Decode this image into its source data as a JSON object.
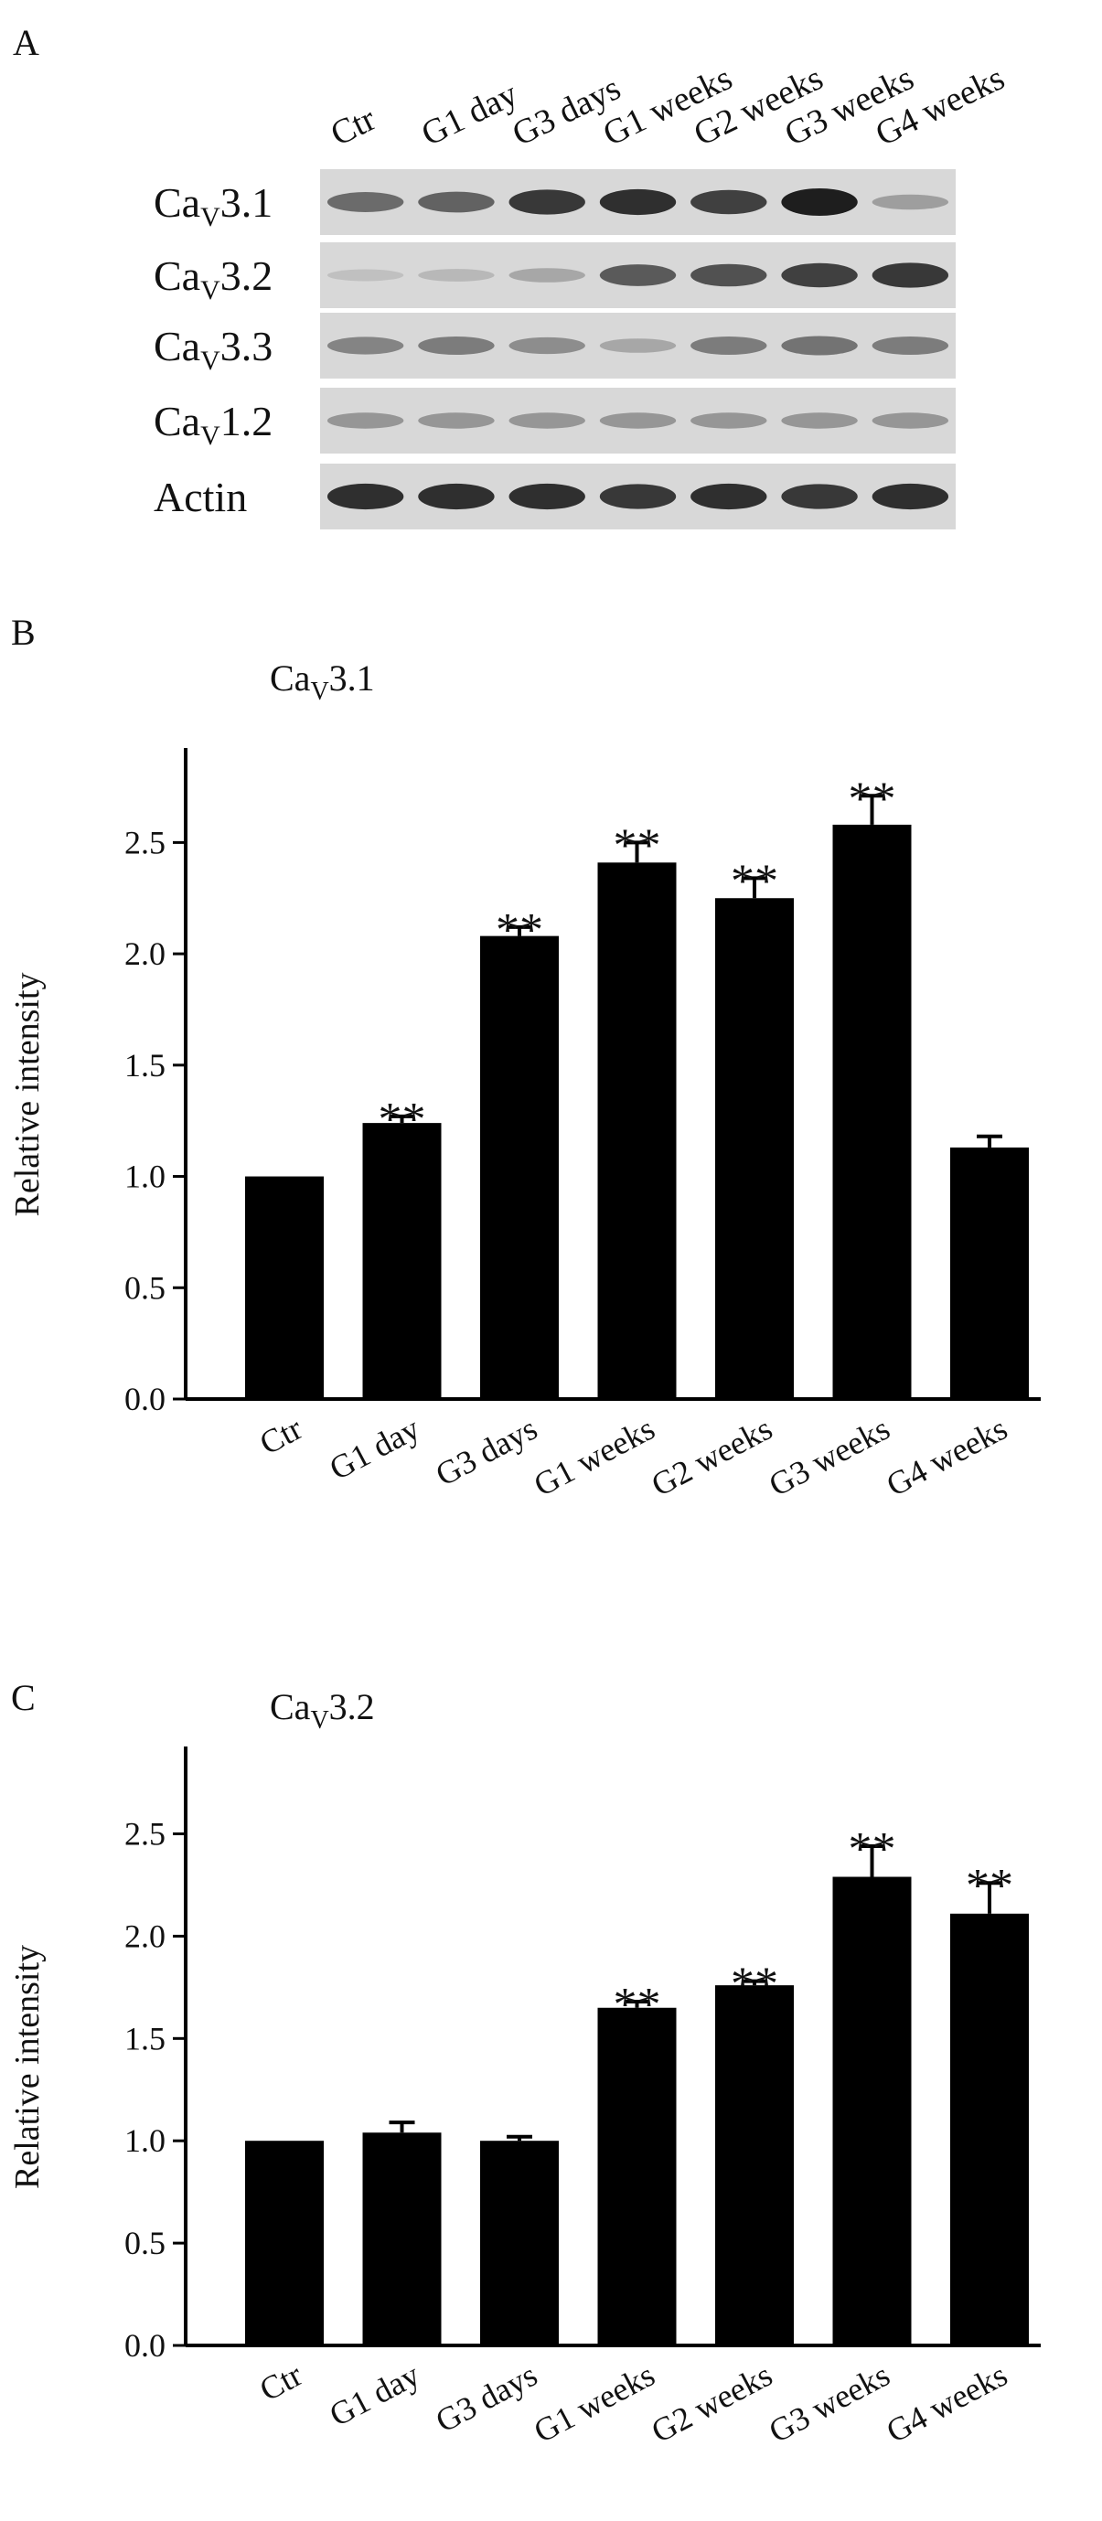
{
  "panel_a": {
    "letter": "A",
    "lanes": [
      "Ctr",
      "G1 day",
      "G3 days",
      "G1 weeks",
      "G2 weeks",
      "G3 weeks",
      "G4 weeks"
    ],
    "rows": [
      {
        "prefix": "Ca",
        "sub": "V",
        "suffix": "3.1",
        "intensity": [
          0.55,
          0.6,
          0.85,
          0.9,
          0.8,
          1.0,
          0.25
        ]
      },
      {
        "prefix": "Ca",
        "sub": "V",
        "suffix": "3.2",
        "intensity": [
          0.05,
          0.1,
          0.2,
          0.65,
          0.7,
          0.8,
          0.85
        ]
      },
      {
        "prefix": "Ca",
        "sub": "V",
        "suffix": "3.3",
        "intensity": [
          0.4,
          0.45,
          0.35,
          0.2,
          0.45,
          0.5,
          0.45
        ]
      },
      {
        "prefix": "Ca",
        "sub": "V",
        "suffix": "1.2",
        "intensity": [
          0.3,
          0.3,
          0.3,
          0.3,
          0.3,
          0.3,
          0.3
        ]
      },
      {
        "prefix": "Actin",
        "sub": "",
        "suffix": "",
        "intensity": [
          0.9,
          0.9,
          0.9,
          0.85,
          0.9,
          0.85,
          0.9
        ]
      }
    ]
  },
  "chart_data": [
    {
      "type": "bar",
      "panel": "B",
      "title_prefix": "Ca",
      "title_sub": "V",
      "title_suffix": "3.1",
      "ylabel": "Relative intensity",
      "xlabel": "",
      "ylim": [
        0,
        2.9
      ],
      "yticks": [
        "0.0",
        "0.5",
        "1.0",
        "1.5",
        "2.0",
        "2.5"
      ],
      "categories": [
        "Ctr",
        "G1 day",
        "G3 days",
        "G1 weeks",
        "G2 weeks",
        "G3 weeks",
        "G4 weeks"
      ],
      "values": [
        1.0,
        1.24,
        2.08,
        2.41,
        2.25,
        2.58,
        1.13
      ],
      "errors": [
        0,
        0.03,
        0.04,
        0.09,
        0.09,
        0.13,
        0.05
      ],
      "significance": [
        "",
        "**",
        "**",
        "**",
        "**",
        "**",
        ""
      ],
      "grid": false
    },
    {
      "type": "bar",
      "panel": "C",
      "title_prefix": "Ca",
      "title_sub": "V",
      "title_suffix": "3.2",
      "ylabel": "Relative intensity",
      "xlabel": "",
      "ylim": [
        0,
        2.9
      ],
      "yticks": [
        "0.0",
        "0.5",
        "1.0",
        "1.5",
        "2.0",
        "2.5"
      ],
      "categories": [
        "Ctr",
        "G1 day",
        "G3 days",
        "G1 weeks",
        "G2 weeks",
        "G3 weeks",
        "G4 weeks"
      ],
      "values": [
        1.0,
        1.04,
        1.0,
        1.65,
        1.76,
        2.29,
        2.11
      ],
      "errors": [
        0,
        0.05,
        0.02,
        0.03,
        0.02,
        0.15,
        0.15
      ],
      "significance": [
        "",
        "",
        "",
        "**",
        "**",
        "**",
        "**"
      ],
      "grid": false
    }
  ]
}
